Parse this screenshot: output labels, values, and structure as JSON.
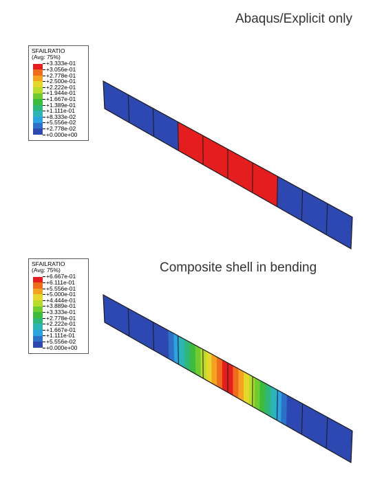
{
  "titles": {
    "top": "Abaqus/Explicit only",
    "bottom": "Composite shell in bending"
  },
  "legend_top": {
    "variable": "SFAILRATIO",
    "averaging": "(Avg: 75%)",
    "values": [
      "+3.333e-01",
      "+3.056e-01",
      "+2.778e-01",
      "+2.500e-01",
      "+2.222e-01",
      "+1.944e-01",
      "+1.667e-01",
      "+1.389e-01",
      "+1.111e-01",
      "+8.333e-02",
      "+5.556e-02",
      "+2.778e-02",
      "+0.000e+00"
    ]
  },
  "legend_bottom": {
    "variable": "SFAILRATIO",
    "averaging": "(Avg: 75%)",
    "values": [
      "+6.667e-01",
      "+6.111e-01",
      "+5.556e-01",
      "+5.000e-01",
      "+4.444e-01",
      "+3.889e-01",
      "+3.333e-01",
      "+2.778e-01",
      "+2.222e-01",
      "+1.667e-01",
      "+1.111e-01",
      "+5.556e-02",
      "+0.000e+00"
    ]
  },
  "colors": {
    "scale": [
      "#e41e1e",
      "#ef6c1d",
      "#f4a21f",
      "#e6d82a",
      "#b8dc2c",
      "#6fcb30",
      "#3dbb3c",
      "#2fb77a",
      "#2db5b5",
      "#2aa3de",
      "#2c70c8",
      "#2d48b0"
    ],
    "edge": "#1a1a1a"
  }
}
